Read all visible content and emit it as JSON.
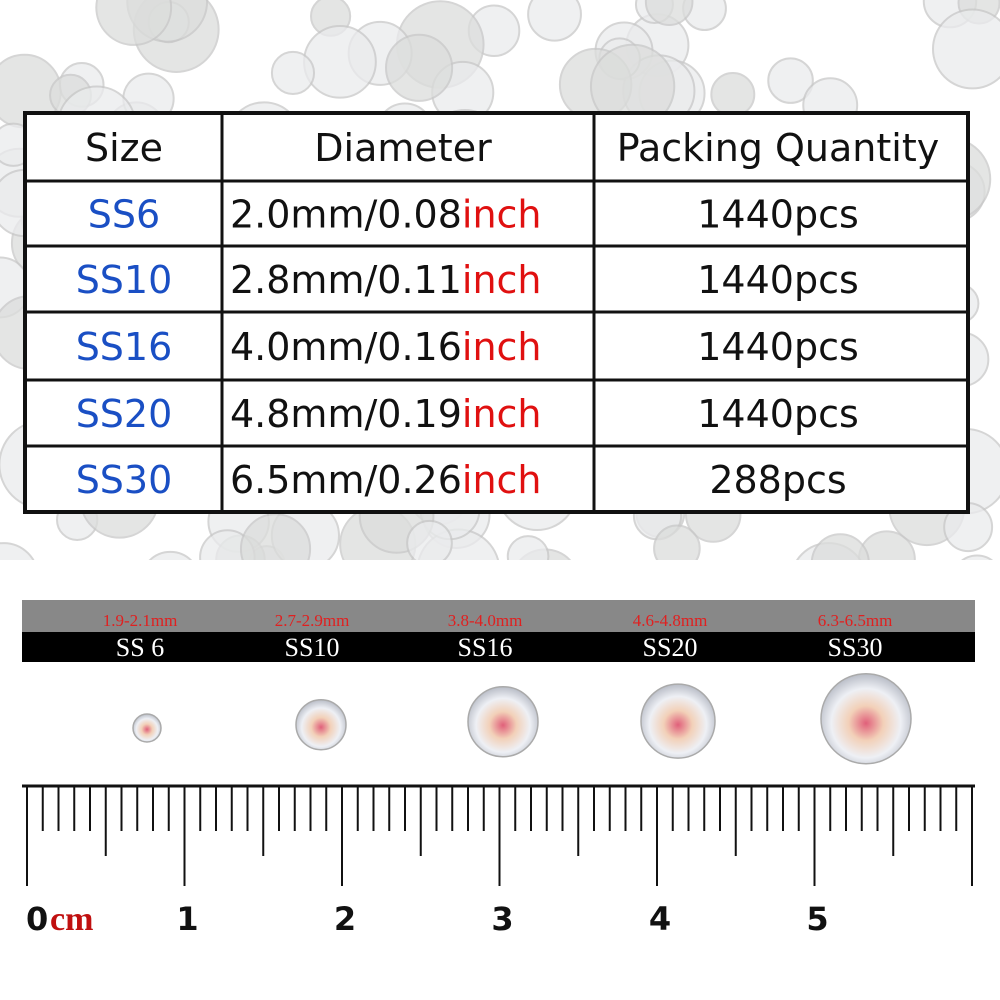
{
  "table": {
    "header": [
      "Size",
      "Diameter",
      "Packing Quantity"
    ],
    "rows": [
      {
        "size": "SS6",
        "diameter": "2.0mm/0.08",
        "unit": "inch",
        "quantity": "1440pcs"
      },
      {
        "size": "SS10",
        "diameter": "2.8mm/0.11",
        "unit": "inch",
        "quantity": "1440pcs"
      },
      {
        "size": "SS16",
        "diameter": "4.0mm/0.16",
        "unit": "inch",
        "quantity": "1440pcs"
      },
      {
        "size": "SS20",
        "diameter": "4.8mm/0.19",
        "unit": "inch",
        "quantity": "1440pcs"
      },
      {
        "size": "SS30",
        "diameter": "6.5mm/0.26",
        "unit": "inch",
        "quantity": "288pcs"
      }
    ]
  },
  "size_bar": [
    {
      "range": "1.9-2.1mm",
      "label": "SS 6"
    },
    {
      "range": "2.7-2.9mm",
      "label": "SS10"
    },
    {
      "range": "3.8-4.0mm",
      "label": "SS16"
    },
    {
      "range": "4.6-4.8mm",
      "label": "SS20"
    },
    {
      "range": "6.3-6.5mm",
      "label": "SS30"
    }
  ],
  "ruler": {
    "zero": "0",
    "unit": "cm",
    "numbers": [
      "1",
      "2",
      "3",
      "4",
      "5"
    ]
  }
}
